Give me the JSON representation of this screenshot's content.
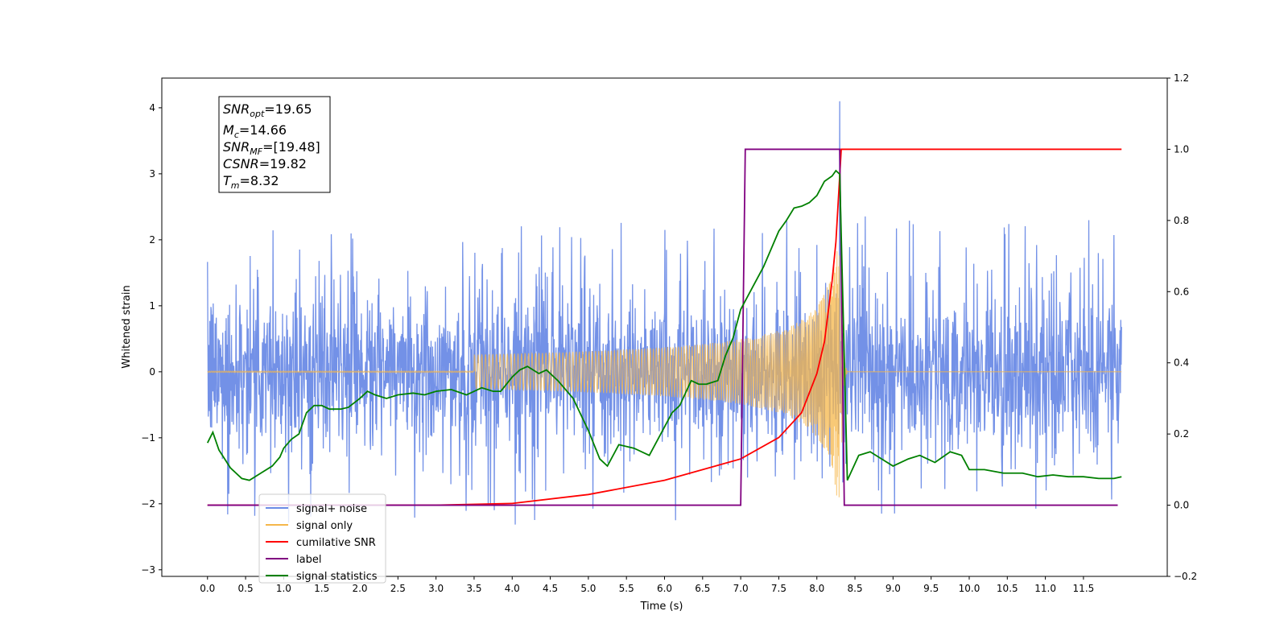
{
  "chart_data": {
    "type": "line",
    "xlabel": "Time (s)",
    "ylabel": "Whitened strain",
    "xlim": [
      -0.6,
      12.6
    ],
    "ylim_left": [
      -3.1,
      4.45
    ],
    "ylim_right": [
      -0.2,
      1.2
    ],
    "x_ticks": [
      "0.0",
      "0.5",
      "1.0",
      "1.5",
      "2.0",
      "2.5",
      "3.0",
      "3.5",
      "4.0",
      "4.5",
      "5.0",
      "5.5",
      "6.0",
      "6.5",
      "7.0",
      "7.5",
      "8.0",
      "8.5",
      "9.0",
      "9.5",
      "10.0",
      "10.5",
      "11.0",
      "11.5"
    ],
    "y_ticks_left": [
      "−3",
      "−2",
      "−1",
      "0",
      "1",
      "2",
      "3",
      "4"
    ],
    "y_ticks_right": [
      "−0.2",
      "0.0",
      "0.2",
      "0.4",
      "0.6",
      "0.8",
      "1.0",
      "1.2"
    ],
    "grid": false,
    "legend_position": "lower-left",
    "annotation": {
      "lines": [
        {
          "sym": "SNR",
          "sub": "opt",
          "value": "=19.65"
        },
        {
          "sym": "M",
          "sub": "c",
          "value": "=14.66"
        },
        {
          "sym": "SNR",
          "sub": "MF",
          "value": "=[19.48]"
        },
        {
          "sym": "CSNR",
          "sub": "",
          "value": "=19.82"
        },
        {
          "sym": "T",
          "sub": "m",
          "value": "=8.32"
        }
      ]
    },
    "series": [
      {
        "name": "signal+ noise",
        "color": "#6b8be6",
        "axis": "left",
        "noise_amplitude": 1.2,
        "peak": 4.1,
        "peak_x": 8.3
      },
      {
        "name": "signal only",
        "color": "#f5b74a",
        "axis": "left",
        "merger_x": 8.32,
        "end_x": 12.0
      },
      {
        "name": "cumilative SNR",
        "color": "#ff0000",
        "axis": "right",
        "x": [
          0.0,
          3.0,
          4.0,
          5.0,
          6.0,
          7.0,
          7.5,
          7.8,
          8.0,
          8.1,
          8.2,
          8.25,
          8.32,
          12.0
        ],
        "values": [
          0.0,
          0.0,
          0.005,
          0.03,
          0.07,
          0.13,
          0.19,
          0.26,
          0.37,
          0.46,
          0.63,
          0.74,
          1.0,
          1.0
        ]
      },
      {
        "name": "label",
        "color": "#800080",
        "axis": "right",
        "x": [
          0.0,
          7.0,
          7.06,
          8.3,
          8.36,
          11.95
        ],
        "values": [
          0.0,
          0.0,
          1.0,
          1.0,
          0.0,
          0.0
        ]
      },
      {
        "name": "signal statistics",
        "color": "#008000",
        "axis": "right",
        "x": [
          0.0,
          0.07,
          0.15,
          0.3,
          0.45,
          0.55,
          0.7,
          0.85,
          0.95,
          1.0,
          1.1,
          1.2,
          1.3,
          1.4,
          1.5,
          1.6,
          1.75,
          1.85,
          2.0,
          2.1,
          2.2,
          2.35,
          2.5,
          2.7,
          2.85,
          3.0,
          3.2,
          3.4,
          3.6,
          3.75,
          3.85,
          4.0,
          4.1,
          4.2,
          4.35,
          4.45,
          4.6,
          4.8,
          5.0,
          5.15,
          5.25,
          5.4,
          5.6,
          5.8,
          5.95,
          6.1,
          6.2,
          6.35,
          6.45,
          6.55,
          6.7,
          6.8,
          6.9,
          7.0,
          7.15,
          7.3,
          7.5,
          7.6,
          7.7,
          7.8,
          7.9,
          8.0,
          8.1,
          8.2,
          8.25,
          8.3,
          8.35,
          8.4,
          8.55,
          8.7,
          8.85,
          9.0,
          9.2,
          9.35,
          9.55,
          9.75,
          9.9,
          10.0,
          10.2,
          10.45,
          10.7,
          10.9,
          11.1,
          11.3,
          11.5,
          11.7,
          11.9,
          12.0
        ],
        "values": [
          0.175,
          0.205,
          0.155,
          0.105,
          0.075,
          0.07,
          0.09,
          0.11,
          0.135,
          0.16,
          0.185,
          0.2,
          0.26,
          0.28,
          0.28,
          0.27,
          0.27,
          0.275,
          0.3,
          0.32,
          0.31,
          0.3,
          0.31,
          0.315,
          0.31,
          0.32,
          0.325,
          0.31,
          0.33,
          0.32,
          0.32,
          0.36,
          0.38,
          0.39,
          0.37,
          0.38,
          0.35,
          0.3,
          0.21,
          0.13,
          0.11,
          0.17,
          0.16,
          0.14,
          0.2,
          0.26,
          0.28,
          0.35,
          0.34,
          0.34,
          0.35,
          0.42,
          0.47,
          0.55,
          0.61,
          0.67,
          0.77,
          0.8,
          0.835,
          0.84,
          0.85,
          0.87,
          0.91,
          0.925,
          0.94,
          0.93,
          0.5,
          0.07,
          0.14,
          0.15,
          0.13,
          0.11,
          0.13,
          0.14,
          0.12,
          0.15,
          0.14,
          0.1,
          0.1,
          0.09,
          0.09,
          0.08,
          0.085,
          0.08,
          0.08,
          0.075,
          0.075,
          0.08
        ]
      }
    ]
  }
}
